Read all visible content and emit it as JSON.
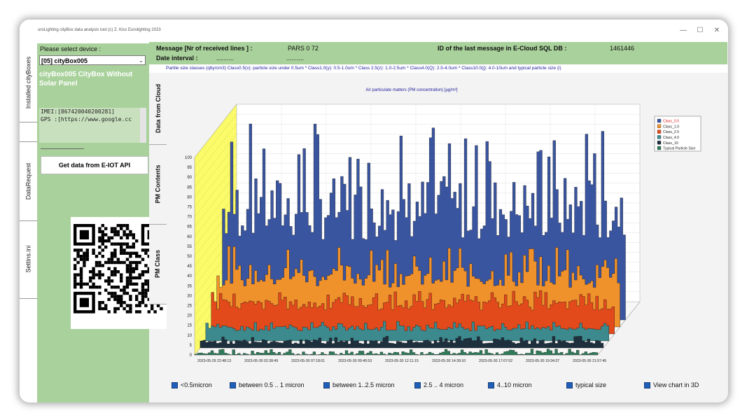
{
  "window": {
    "title": "uroLighting cityBox data analysis tool (c) Z. Kiss Eurolighting 2023",
    "minimize_icon": "minimize-icon",
    "maximize_icon": "maximize-icon",
    "close_icon": "close-icon"
  },
  "side_tabs": [
    "Installed cityBoxes",
    "DataRequest",
    "Settins.ini"
  ],
  "left_panel": {
    "select_label": "Please select device  :",
    "device_value": "[05] cityBox005",
    "device_title": "cityBox005 CityBox Without Solar Panel",
    "imei": "IMEI:[867420040200281]",
    "gps": "GPS :[https://www.google.cc",
    "api_button": "Get data from E-IOT API"
  },
  "header": {
    "message_label": "Message [Nr of received lines ] :",
    "message_value": "PARS 0 72",
    "date_label": "Date interval :",
    "date_value1": "..........",
    "date_value2": "..........",
    "id_label": "ID of the last message in E-Cloud SQL DB :",
    "id_value": "1461446"
  },
  "info_line": "Partile size classes (qtty/cm3) Class0.5(x): particle size under 0.5um * Class1.0(y): 0.5-1.0um * Class 2.5(z): 1.0-2.5um * Class4.0(Q): 2.5-4.0um * Class10.0(j): 4.0-10um and typical particle size (i)",
  "inner_tabs": [
    "Data from Cloud",
    "PM Contents",
    "PM Class"
  ],
  "colors": {
    "class_05": "#3a55a0",
    "class_10": "#f0922c",
    "class_25": "#e24a1c",
    "class_40": "#3d8a8e",
    "class_10um": "#1e2f3e",
    "typical": "#2f7a58"
  },
  "checkboxes": [
    "<0.5micron",
    "between 0.5 .. 1 micron",
    "between 1..2.5 micron",
    "2.5 .. 4 micron",
    "4..10 micron",
    "typical size",
    "View chart in 3D"
  ],
  "chart_data": {
    "type": "area",
    "title": "Air particulate matters (PM concentration) [µg/m³]",
    "xlabel": "",
    "ylabel": "",
    "ylim": [
      0,
      100
    ],
    "ytick_labels": [
      "0",
      "5",
      "10",
      "15",
      "20",
      "25",
      "30",
      "35",
      "40",
      "45",
      "50",
      "55",
      "60",
      "65",
      "70",
      "75",
      "80",
      "85",
      "90",
      "95",
      "100"
    ],
    "x_tick_labels": [
      "2023-05-29 22:48:13",
      "2023-05-30 02:38:49",
      "2023-05-30 07:18:01",
      "2023-05-30 09:45:53",
      "2023-05-30 12:11:15",
      "2023-05-30 14:39:10",
      "2023-05-30 17:07:02",
      "2023-05-30 19:34:37",
      "2023-05-30 21:57:45"
    ],
    "legend": [
      "Class_0.5",
      "Class_1.0",
      "Class_2.5",
      "Class_4.0",
      "Class_10",
      "Typical Particle Size"
    ],
    "legend_position": "top-right",
    "series_levels": [
      {
        "name": "Class_0.5",
        "approx_range": [
          40,
          100
        ]
      },
      {
        "name": "Class_1.0",
        "approx_range": [
          20,
          42
        ]
      },
      {
        "name": "Class_2.5",
        "approx_range": [
          12,
          22
        ]
      },
      {
        "name": "Class_4.0",
        "approx_range": [
          5,
          10
        ]
      },
      {
        "name": "Class_10",
        "approx_range": [
          2,
          6
        ]
      },
      {
        "name": "Typical Particle Size",
        "approx_range": [
          0,
          3
        ]
      }
    ]
  }
}
